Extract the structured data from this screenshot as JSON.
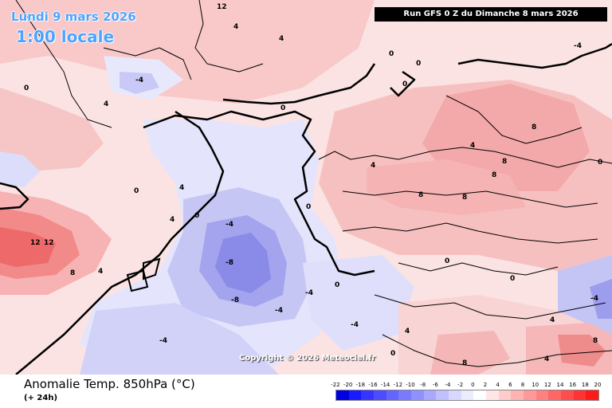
{
  "map": {
    "date_label": "Lundi 9 mars 2026",
    "time_label": "1:00 locale",
    "run_label": "Run GFS 0 Z du Dimanche 8 mars 2026",
    "copyright": "Copyright © 2026 Meteociel.fr",
    "contour_labels": [
      "0",
      "4",
      "8",
      "-4",
      "-8",
      "12"
    ]
  },
  "footer": {
    "title": "Anomalie Temp. 850hPa (°C)",
    "subtitle": "(+ 24h)"
  },
  "legend": {
    "ticks": [
      "-22",
      "-20",
      "-18",
      "-16",
      "-14",
      "-12",
      "-10",
      "-8",
      "-6",
      "-4",
      "-2",
      "0",
      "2",
      "4",
      "6",
      "8",
      "10",
      "12",
      "14",
      "16",
      "18",
      "20"
    ],
    "colors": [
      "#0000e0",
      "#1a1aff",
      "#3535ff",
      "#4d4dff",
      "#6464ff",
      "#7a7aff",
      "#9090ff",
      "#a8a8ff",
      "#c0c0ff",
      "#d8d8ff",
      "#ececff",
      "#ffffff",
      "#ffe6e6",
      "#ffcccc",
      "#ffb3b3",
      "#ff9999",
      "#ff8080",
      "#ff6666",
      "#ff4d4d",
      "#ff3333",
      "#ff1a1a"
    ]
  }
}
